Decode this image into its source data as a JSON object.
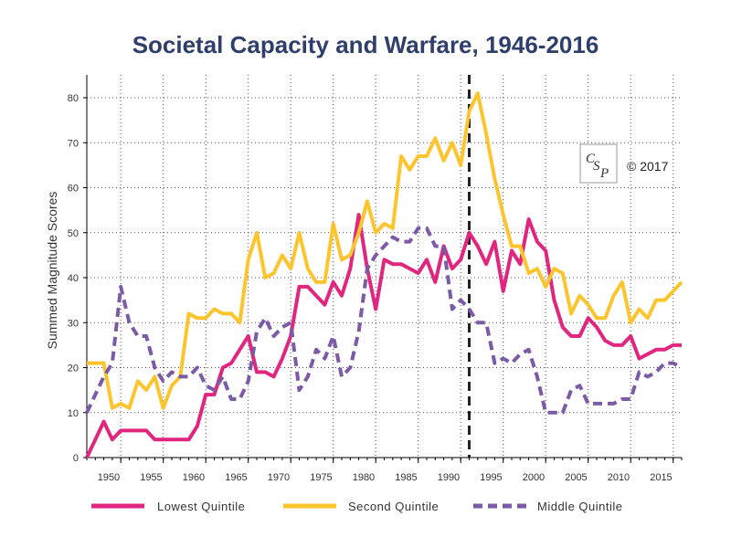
{
  "chart_data": {
    "type": "line",
    "title": "Societal Capacity and Warfare, 1946-2016",
    "ylabel": "Summed Magnitude Scores",
    "xlabel": "",
    "xlim": [
      1946,
      2016
    ],
    "ylim": [
      0,
      85
    ],
    "yticks": [
      0,
      10,
      20,
      30,
      40,
      50,
      60,
      70,
      80
    ],
    "xticks": [
      1950,
      1955,
      1960,
      1965,
      1970,
      1975,
      1980,
      1985,
      1990,
      1995,
      2000,
      2005,
      2010,
      2015
    ],
    "grid": true,
    "reference_line": {
      "x": 1991,
      "style": "dashed"
    },
    "legend_position": "bottom",
    "x": [
      1946,
      1947,
      1948,
      1949,
      1950,
      1951,
      1952,
      1953,
      1954,
      1955,
      1956,
      1957,
      1958,
      1959,
      1960,
      1961,
      1962,
      1963,
      1964,
      1965,
      1966,
      1967,
      1968,
      1969,
      1970,
      1971,
      1972,
      1973,
      1974,
      1975,
      1976,
      1977,
      1978,
      1979,
      1980,
      1981,
      1982,
      1983,
      1984,
      1985,
      1986,
      1987,
      1988,
      1989,
      1990,
      1991,
      1992,
      1993,
      1994,
      1995,
      1996,
      1997,
      1998,
      1999,
      2000,
      2001,
      2002,
      2003,
      2004,
      2005,
      2006,
      2007,
      2008,
      2009,
      2010,
      2011,
      2012,
      2013,
      2014,
      2015,
      2016
    ],
    "series": [
      {
        "name": "Lowest Quintile",
        "color": "#e0267f",
        "dash": false,
        "values": [
          0,
          4,
          8,
          4,
          6,
          6,
          6,
          6,
          4,
          4,
          4,
          4,
          4,
          7,
          14,
          14,
          20,
          21,
          24,
          27,
          19,
          19,
          18,
          22,
          27,
          38,
          38,
          36,
          34,
          39,
          36,
          42,
          54,
          42,
          33,
          44,
          43,
          43,
          42,
          41,
          44,
          39,
          47,
          42,
          44,
          50,
          47,
          43,
          48,
          37,
          46,
          43,
          53,
          48,
          46,
          35,
          29,
          27,
          27,
          31,
          29,
          26,
          25,
          25,
          27,
          22,
          23,
          24,
          24,
          25,
          25
        ]
      },
      {
        "name": "Second Quintile",
        "color": "#fcc52e",
        "dash": false,
        "values": [
          21,
          21,
          21,
          11,
          12,
          11,
          17,
          15,
          18,
          11,
          16,
          18,
          32,
          31,
          31,
          33,
          32,
          32,
          30,
          44,
          50,
          40,
          41,
          45,
          42,
          50,
          42,
          39,
          39,
          52,
          44,
          45,
          50,
          57,
          50,
          52,
          51,
          67,
          64,
          67,
          67,
          71,
          66,
          70,
          65,
          77,
          81,
          72,
          62,
          54,
          47,
          47,
          41,
          42,
          38,
          42,
          41,
          32,
          36,
          34,
          31,
          31,
          36,
          39,
          30,
          33,
          31,
          35,
          35,
          37,
          39
        ]
      },
      {
        "name": "Middle Quintile",
        "color": "#7b5aa6",
        "dash": true,
        "values": [
          10,
          14,
          18,
          21,
          38,
          30,
          27,
          27,
          20,
          17,
          19,
          18,
          18,
          20,
          16,
          15,
          18,
          13,
          13,
          17,
          28,
          31,
          27,
          29,
          30,
          15,
          18,
          24,
          22,
          27,
          18,
          20,
          28,
          42,
          45,
          47,
          49,
          48,
          48,
          51,
          51,
          47,
          47,
          33,
          35,
          33,
          30,
          30,
          21,
          22,
          21,
          23,
          24,
          18,
          10,
          10,
          10,
          15,
          16,
          12,
          12,
          12,
          12,
          13,
          13,
          19,
          18,
          19,
          21,
          21,
          20
        ]
      }
    ]
  },
  "watermark": {
    "logo_text": "CSP",
    "copyright": "© 2017"
  }
}
